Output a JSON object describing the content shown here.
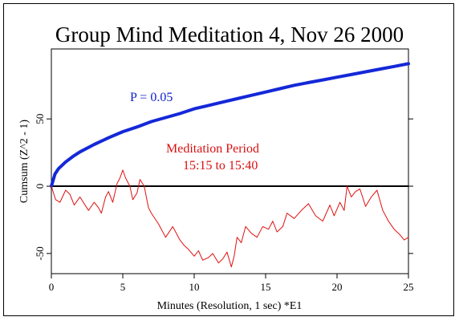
{
  "chart_data": {
    "type": "line",
    "title": "Group Mind Meditation 4, Nov 26 2000",
    "xlabel": "Minutes (Resolution, 1 sec)  *E1",
    "ylabel": "Cumsum (Z^2 - 1)",
    "xlim": [
      0,
      25
    ],
    "ylim": [
      -65,
      102
    ],
    "x_ticks": [
      "0",
      "5",
      "10",
      "15",
      "20",
      "25"
    ],
    "y_ticks": [
      "-50",
      "0",
      "50"
    ],
    "grid": false,
    "legend": "none",
    "annotations": {
      "p_label": "P = 0.05",
      "period_line1": "Meditation Period",
      "period_line2": "15:15 to 15:40"
    },
    "colors": {
      "probability_envelope": "#1428d8",
      "cumsum": "#e01010",
      "zero_line": "#000000",
      "annotation_blue": "#1020c8",
      "annotation_red": "#d81010"
    },
    "series": [
      {
        "name": "P = 0.05",
        "kind": "probability-envelope",
        "x": [
          0,
          0.25,
          0.5,
          1,
          1.5,
          2,
          3,
          4,
          5,
          6,
          7,
          8,
          9,
          10,
          11,
          12,
          13,
          14,
          15,
          16,
          17,
          18,
          19,
          20,
          21,
          22,
          23,
          24,
          25
        ],
        "y": [
          0,
          9,
          13,
          18,
          22,
          25.5,
          31,
          36,
          40.5,
          44,
          48,
          51,
          54,
          57.5,
          60,
          62.5,
          65,
          67.5,
          70,
          72.5,
          75,
          77,
          79,
          81,
          83,
          85,
          87,
          89,
          91
        ]
      },
      {
        "name": "Cumsum",
        "kind": "cumulative-deviation",
        "x": [
          0,
          0.3,
          0.6,
          1.0,
          1.3,
          1.6,
          2.0,
          2.3,
          2.6,
          3.0,
          3.3,
          3.5,
          3.8,
          4.0,
          4.3,
          4.6,
          4.8,
          5.0,
          5.2,
          5.5,
          5.7,
          6.0,
          6.2,
          6.5,
          6.8,
          7.0,
          7.5,
          8.0,
          8.5,
          9.0,
          9.3,
          9.6,
          10.0,
          10.3,
          10.6,
          11.0,
          11.3,
          11.7,
          12.0,
          12.3,
          12.6,
          12.8,
          13.0,
          13.3,
          13.6,
          14.0,
          14.4,
          14.8,
          15.2,
          15.5,
          15.8,
          16.2,
          16.5,
          17.0,
          17.5,
          18.0,
          18.5,
          19.0,
          19.5,
          19.8,
          20.2,
          20.5,
          20.7,
          21.0,
          21.3,
          21.6,
          22.0,
          22.4,
          22.8,
          23.2,
          23.6,
          24.0,
          24.4,
          24.7,
          25.0
        ],
        "y": [
          0,
          -10,
          -12,
          -3,
          -6,
          -14,
          -8,
          -13,
          -18,
          -12,
          -16,
          -20,
          -8,
          -4,
          -12,
          2,
          6,
          12,
          6,
          0,
          -10,
          -5,
          5,
          0,
          -16,
          -20,
          -28,
          -38,
          -30,
          -40,
          -44,
          -47,
          -52,
          -48,
          -55,
          -53,
          -50,
          -57,
          -54,
          -49,
          -60,
          -52,
          -38,
          -42,
          -30,
          -35,
          -38,
          -30,
          -32,
          -26,
          -34,
          -30,
          -20,
          -24,
          -18,
          -13,
          -22,
          -26,
          -14,
          -22,
          -12,
          -18,
          0,
          -8,
          -4,
          -2,
          -15,
          -8,
          -3,
          -18,
          -26,
          -32,
          -36,
          -40,
          -38
        ]
      }
    ]
  }
}
